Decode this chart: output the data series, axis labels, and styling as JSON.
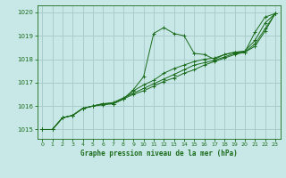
{
  "title": "Graphe pression niveau de la mer (hPa)",
  "bg_color": "#c8e8e8",
  "grid_color": "#aacccc",
  "line_color": "#1a6b1a",
  "xlim": [
    -0.5,
    23.5
  ],
  "ylim": [
    1014.6,
    1020.3
  ],
  "yticks": [
    1015,
    1016,
    1017,
    1018,
    1019,
    1020
  ],
  "xticks": [
    0,
    1,
    2,
    3,
    4,
    5,
    6,
    7,
    8,
    9,
    10,
    11,
    12,
    13,
    14,
    15,
    16,
    17,
    18,
    19,
    20,
    21,
    22,
    23
  ],
  "series": [
    {
      "x": [
        0,
        1,
        2,
        3,
        4,
        5,
        6,
        7,
        8,
        9,
        10,
        11,
        12,
        13,
        14,
        15,
        16,
        17,
        18,
        19,
        20,
        21,
        22,
        23
      ],
      "y": [
        1015.0,
        1015.0,
        1015.5,
        1015.6,
        1015.9,
        1016.0,
        1016.1,
        1016.1,
        1016.3,
        1016.7,
        1017.25,
        1019.1,
        1019.35,
        1019.1,
        1019.0,
        1018.25,
        1018.2,
        1018.0,
        1018.2,
        1018.3,
        1018.3,
        1019.15,
        1019.8,
        1019.95
      ]
    },
    {
      "x": [
        0,
        1,
        2,
        3,
        4,
        5,
        6,
        7,
        8,
        9,
        10,
        11,
        12,
        13,
        14,
        15,
        16,
        17,
        18,
        19,
        20,
        21,
        22,
        23
      ],
      "y": [
        1015.0,
        1015.0,
        1015.5,
        1015.6,
        1015.9,
        1016.0,
        1016.1,
        1016.1,
        1016.3,
        1016.65,
        1016.9,
        1017.1,
        1017.4,
        1017.6,
        1017.75,
        1017.9,
        1018.0,
        1018.05,
        1018.2,
        1018.3,
        1018.35,
        1018.8,
        1019.55,
        1019.95
      ]
    },
    {
      "x": [
        0,
        1,
        2,
        3,
        4,
        5,
        6,
        7,
        8,
        9,
        10,
        11,
        12,
        13,
        14,
        15,
        16,
        17,
        18,
        19,
        20,
        21,
        22,
        23
      ],
      "y": [
        1015.0,
        1015.0,
        1015.5,
        1015.6,
        1015.9,
        1016.0,
        1016.1,
        1016.15,
        1016.35,
        1016.55,
        1016.75,
        1016.95,
        1017.15,
        1017.35,
        1017.55,
        1017.75,
        1017.85,
        1017.95,
        1018.1,
        1018.25,
        1018.3,
        1018.65,
        1019.3,
        1019.95
      ]
    },
    {
      "x": [
        0,
        1,
        2,
        3,
        4,
        5,
        6,
        7,
        8,
        9,
        10,
        11,
        12,
        13,
        14,
        15,
        16,
        17,
        18,
        19,
        20,
        21,
        22,
        23
      ],
      "y": [
        1015.0,
        1015.0,
        1015.5,
        1015.6,
        1015.9,
        1016.0,
        1016.05,
        1016.1,
        1016.3,
        1016.5,
        1016.65,
        1016.85,
        1017.05,
        1017.2,
        1017.4,
        1017.55,
        1017.75,
        1017.9,
        1018.05,
        1018.2,
        1018.3,
        1018.55,
        1019.2,
        1019.95
      ]
    }
  ]
}
